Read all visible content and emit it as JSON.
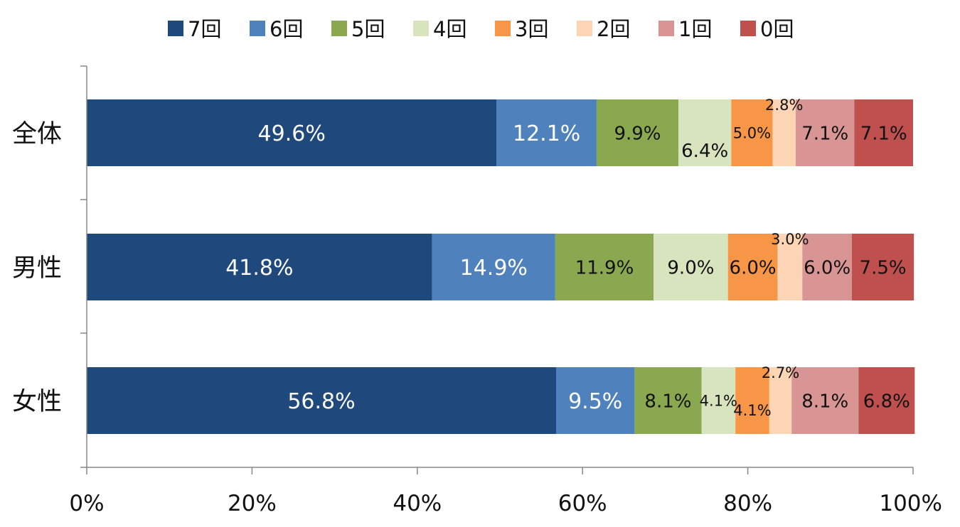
{
  "chart_data": {
    "type": "bar",
    "orientation": "horizontal",
    "stacked": "percent",
    "categories": [
      "全体",
      "男性",
      "女性"
    ],
    "series": [
      {
        "name": "7回",
        "color": "#1f497d",
        "values": [
          49.6,
          41.8,
          56.8
        ],
        "labels": [
          "49.6%",
          "41.8%",
          "56.8%"
        ],
        "label_color": "#ffffff"
      },
      {
        "name": "6回",
        "color": "#4f81bd",
        "values": [
          12.1,
          14.9,
          9.5
        ],
        "labels": [
          "12.1%",
          "14.9%",
          "9.5%"
        ],
        "label_color": "#ffffff"
      },
      {
        "name": "5回",
        "color": "#8aa84f",
        "values": [
          9.9,
          11.9,
          8.1
        ],
        "labels": [
          "9.9%",
          "11.9%",
          "8.1%"
        ],
        "label_color": "#111111"
      },
      {
        "name": "4回",
        "color": "#d7e4bd",
        "values": [
          6.4,
          9.0,
          4.1
        ],
        "labels": [
          "6.4%",
          "9.0%",
          "4.1%"
        ],
        "label_color": "#111111"
      },
      {
        "name": "3回",
        "color": "#f79646",
        "values": [
          5.0,
          6.0,
          4.1
        ],
        "labels": [
          "5.0%",
          "6.0%",
          "4.1%"
        ],
        "label_color": "#111111"
      },
      {
        "name": "2回",
        "color": "#fcd5b4",
        "values": [
          2.8,
          3.0,
          2.7
        ],
        "labels": [
          "2.8%",
          "3.0%",
          "2.7%"
        ],
        "label_color": "#111111"
      },
      {
        "name": "1回",
        "color": "#d99594",
        "values": [
          7.1,
          6.0,
          8.1
        ],
        "labels": [
          "7.1%",
          "6.0%",
          "8.1%"
        ],
        "label_color": "#111111"
      },
      {
        "name": "0回",
        "color": "#c0504d",
        "values": [
          7.1,
          7.5,
          6.8
        ],
        "labels": [
          "7.1%",
          "7.5%",
          "6.8%"
        ],
        "label_color": "#111111"
      }
    ],
    "xlim": [
      0,
      100
    ],
    "xticks": [
      "0%",
      "20%",
      "40%",
      "60%",
      "80%",
      "100%"
    ],
    "title": "",
    "xlabel": "",
    "ylabel": "",
    "legend": "top",
    "grid": false
  }
}
